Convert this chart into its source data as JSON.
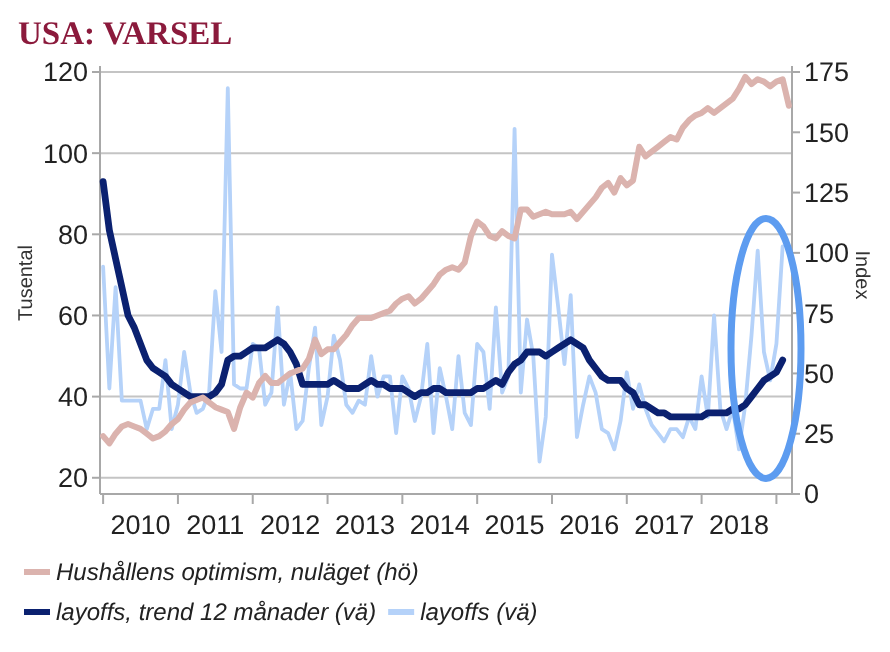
{
  "chart_data": {
    "type": "line",
    "title": "USA: VARSEL",
    "ylabel": "Tusental",
    "y2label": "Index",
    "categories": [
      null,
      null,
      null,
      null,
      null,
      null,
      "2010",
      null,
      null,
      null,
      null,
      null,
      null,
      null,
      null,
      null,
      null,
      null,
      "2011",
      null,
      null,
      null,
      null,
      null,
      null,
      null,
      null,
      null,
      null,
      null,
      "2012",
      null,
      null,
      null,
      null,
      null,
      null,
      null,
      null,
      null,
      null,
      null,
      "2013",
      null,
      null,
      null,
      null,
      null,
      null,
      null,
      null,
      null,
      null,
      null,
      "2014",
      null,
      null,
      null,
      null,
      null,
      null,
      null,
      null,
      null,
      null,
      null,
      "2015",
      null,
      null,
      null,
      null,
      null,
      null,
      null,
      null,
      null,
      null,
      null,
      "2016",
      null,
      null,
      null,
      null,
      null,
      null,
      null,
      null,
      null,
      null,
      null,
      "2017",
      null,
      null,
      null,
      null,
      null,
      null,
      null,
      null,
      null,
      null,
      null,
      "2018",
      null,
      null,
      null,
      null,
      null,
      null,
      null,
      null
    ],
    "ylim": [
      16,
      120
    ],
    "yticks": [
      20,
      40,
      60,
      80,
      100,
      120
    ],
    "y2lim": [
      0,
      175
    ],
    "y2ticks": [
      0,
      25,
      50,
      75,
      100,
      125,
      150,
      175
    ],
    "grid": "y",
    "legend": "bottom",
    "series": [
      {
        "name": "Hushållens optimism, nuläget (hö)",
        "color": "#dbb3ae",
        "axis": "y2",
        "values": [
          24,
          21,
          25,
          28,
          29,
          28,
          27,
          25,
          23,
          24,
          26,
          29,
          31,
          35,
          38,
          39,
          40,
          38,
          36,
          35,
          34,
          27,
          36,
          42,
          40,
          46,
          49,
          46,
          46,
          48,
          50,
          51,
          52,
          56,
          64,
          58,
          60,
          60,
          63,
          66,
          70,
          73,
          73,
          73,
          74,
          75,
          76,
          79,
          81,
          82,
          79,
          81,
          84,
          87,
          91,
          93,
          94,
          93,
          96,
          107,
          113,
          111,
          107,
          106,
          109,
          107,
          106,
          118,
          118,
          115,
          116,
          117,
          116,
          116,
          116,
          117,
          114,
          117,
          120,
          123,
          127,
          129,
          125,
          131,
          128,
          130,
          144,
          140,
          142,
          144,
          146,
          148,
          147,
          152,
          155,
          157,
          158,
          160,
          158,
          160,
          162,
          164,
          168,
          173,
          170,
          172,
          171,
          169,
          171,
          172,
          161
        ]
      },
      {
        "name": "layoffs, trend 12 månader (vä)",
        "color": "#0b2170",
        "values": [
          93,
          81,
          74,
          67,
          60,
          57,
          53,
          49,
          47,
          46,
          45,
          43,
          42,
          41,
          40,
          40,
          40,
          40,
          41,
          43,
          49,
          50,
          50,
          51,
          52,
          52,
          52,
          53,
          54,
          53,
          51,
          48,
          43,
          43,
          43,
          43,
          43,
          44,
          43,
          42,
          42,
          42,
          43,
          44,
          43,
          43,
          42,
          42,
          42,
          41,
          40,
          41,
          41,
          42,
          42,
          41,
          41,
          41,
          41,
          41,
          42,
          42,
          43,
          44,
          43,
          46,
          48,
          49,
          51,
          51,
          51,
          50,
          51,
          52,
          53,
          54,
          53,
          52,
          49,
          47,
          45,
          44,
          44,
          44,
          42,
          41,
          38,
          38,
          37,
          36,
          36,
          35,
          35,
          35,
          35,
          35,
          35,
          36,
          36,
          36,
          36,
          37,
          37,
          38,
          40,
          42,
          44,
          45,
          46,
          49,
          null
        ]
      },
      {
        "name": "layoffs (vä)",
        "color": "#b5d2f9",
        "values": [
          72,
          42,
          67,
          39,
          39,
          39,
          39,
          32,
          37,
          37,
          49,
          32,
          38,
          51,
          41,
          36,
          37,
          41,
          66,
          51,
          116,
          43,
          42,
          42,
          53,
          52,
          38,
          41,
          62,
          38,
          46,
          32,
          34,
          47,
          57,
          33,
          40,
          55,
          49,
          38,
          36,
          39,
          38,
          50,
          40,
          45,
          45,
          31,
          45,
          42,
          34,
          40,
          53,
          31,
          47,
          40,
          32,
          50,
          36,
          33,
          53,
          51,
          37,
          62,
          41,
          45,
          106,
          41,
          59,
          50,
          24,
          35,
          75,
          62,
          48,
          65,
          30,
          38,
          45,
          41,
          32,
          31,
          27,
          34,
          46,
          37,
          43,
          37,
          33,
          31,
          29,
          32,
          32,
          30,
          35,
          32,
          45,
          35,
          60,
          37,
          32,
          37,
          27,
          38,
          55,
          76,
          51,
          44,
          53,
          77,
          null
        ]
      }
    ]
  }
}
